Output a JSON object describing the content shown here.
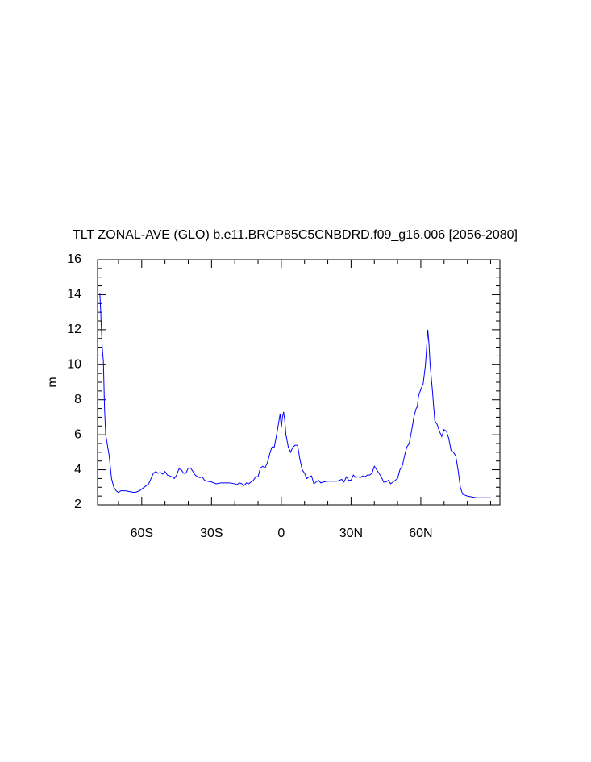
{
  "chart_data": {
    "type": "line",
    "title": "TLT ZONAL-AVE (GLO) b.e11.BRCP85C5CNBDRD.f09_g16.006 [2056-2080]",
    "y_label": "m",
    "xlim": [
      -79,
      94
    ],
    "ylim": [
      2,
      16
    ],
    "xticks": [
      {
        "value": -60,
        "label": "60S"
      },
      {
        "value": -30,
        "label": "30S"
      },
      0,
      {
        "value": 30,
        "label": "30N"
      },
      {
        "value": 60,
        "label": "60N"
      }
    ],
    "xminorticks": [
      -70,
      -50,
      -40,
      -20,
      -10,
      10,
      20,
      40,
      50,
      70,
      80,
      90
    ],
    "yticks": [
      2,
      4,
      6,
      8,
      10,
      12,
      14,
      16
    ],
    "yminorticks": [
      2.5,
      3,
      3.5,
      4.5,
      5,
      5.5,
      6.5,
      7,
      7.5,
      8.5,
      9,
      9.5,
      10.5,
      11,
      11.5,
      12.5,
      13,
      13.5,
      14.5,
      15,
      15.5
    ],
    "x": [
      -78,
      -77,
      -76.5,
      -76,
      -75.5,
      -74,
      -73,
      -72,
      -71,
      -70,
      -69,
      -67,
      -65,
      -63,
      -61,
      -59,
      -57,
      -56,
      -55,
      -54,
      -53,
      -52,
      -51,
      -50,
      -49,
      -48,
      -47,
      -46,
      -45,
      -44,
      -43,
      -42,
      -41,
      -40,
      -39,
      -38,
      -37,
      -36,
      -35,
      -34,
      -33,
      -32,
      -30,
      -28,
      -26,
      -24,
      -22,
      -20,
      -19,
      -18,
      -17,
      -16,
      -15,
      -14,
      -13,
      -12,
      -11,
      -10,
      -9,
      -8,
      -7,
      -6,
      -5,
      -4,
      -3,
      -2,
      -1,
      -0.5,
      0,
      0.5,
      1,
      1.5,
      2,
      3,
      4,
      5,
      6,
      7,
      8,
      9,
      10,
      11,
      12,
      13,
      14,
      15,
      16,
      17,
      18,
      20,
      22,
      24,
      26,
      27,
      28,
      29,
      30,
      31,
      32,
      33,
      34,
      35,
      36,
      37,
      38,
      39,
      40,
      41,
      42,
      43,
      44,
      45,
      46,
      47,
      48,
      49,
      50,
      51,
      52,
      53,
      54,
      55,
      56,
      57,
      58,
      58.5,
      59,
      60,
      61,
      62,
      62.5,
      63,
      63.5,
      64,
      65,
      66,
      67,
      68,
      69,
      70,
      71,
      72,
      73,
      74,
      75,
      76,
      77,
      78,
      79,
      80,
      82,
      84,
      86,
      88,
      90
    ],
    "series": [
      {
        "color": "#0000ff",
        "values": [
          14.1,
          11,
          10.2,
          7.5,
          6,
          4.8,
          3.5,
          3.0,
          2.8,
          2.7,
          2.8,
          2.8,
          2.75,
          2.7,
          2.8,
          3.0,
          3.2,
          3.5,
          3.8,
          3.9,
          3.8,
          3.85,
          3.75,
          3.9,
          3.7,
          3.65,
          3.6,
          3.5,
          3.7,
          4.05,
          4.0,
          3.8,
          3.8,
          4.1,
          4.1,
          3.9,
          3.7,
          3.6,
          3.55,
          3.6,
          3.4,
          3.35,
          3.3,
          3.2,
          3.25,
          3.25,
          3.25,
          3.2,
          3.15,
          3.25,
          3.2,
          3.1,
          3.25,
          3.2,
          3.3,
          3.4,
          3.6,
          3.6,
          4.1,
          4.2,
          4.1,
          4.4,
          4.9,
          5.3,
          5.3,
          6.0,
          6.8,
          7.2,
          6.4,
          7.0,
          7.3,
          6.8,
          6.0,
          5.3,
          5.0,
          5.3,
          5.4,
          5.4,
          4.6,
          4.0,
          3.8,
          3.5,
          3.6,
          3.65,
          3.2,
          3.3,
          3.4,
          3.25,
          3.3,
          3.35,
          3.35,
          3.35,
          3.45,
          3.3,
          3.6,
          3.4,
          3.4,
          3.7,
          3.55,
          3.6,
          3.55,
          3.65,
          3.6,
          3.7,
          3.7,
          3.8,
          4.2,
          4.0,
          3.8,
          3.6,
          3.3,
          3.3,
          3.4,
          3.2,
          3.3,
          3.4,
          3.5,
          4.0,
          4.2,
          4.8,
          5.3,
          5.5,
          6.2,
          7.0,
          7.5,
          7.6,
          8.2,
          8.6,
          8.9,
          10.0,
          11.0,
          12.0,
          11.2,
          10.0,
          8.5,
          6.8,
          6.6,
          6.2,
          5.9,
          6.3,
          6.2,
          5.8,
          5.1,
          5.0,
          4.8,
          4.0,
          3.0,
          2.6,
          2.55,
          2.5,
          2.45,
          2.4,
          2.4,
          2.4,
          2.4
        ]
      }
    ]
  }
}
